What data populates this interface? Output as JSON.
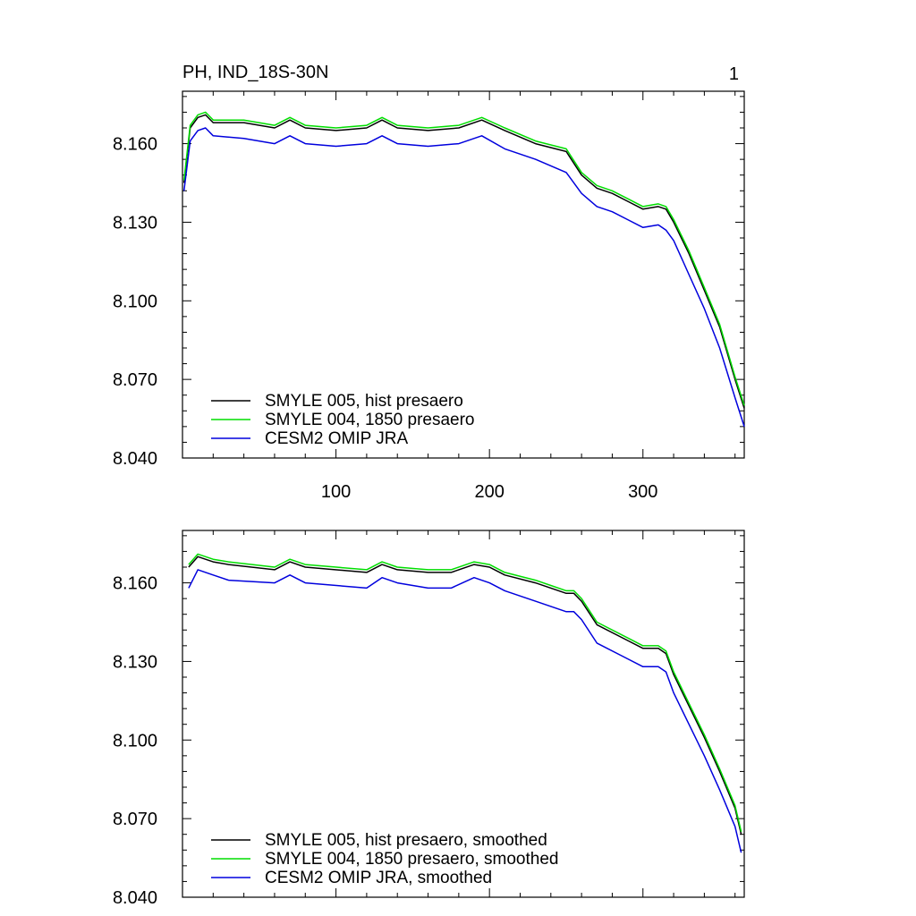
{
  "chart_data": [
    {
      "type": "line",
      "title": "PH, IND_18S-30N",
      "corner_label": "1",
      "xlabel": "",
      "ylabel": "",
      "xlim": [
        0,
        366
      ],
      "ylim": [
        8.04,
        8.18
      ],
      "x_ticks": [
        100,
        200,
        300
      ],
      "x_tick_labels": [
        "100",
        "200",
        "300"
      ],
      "y_ticks": [
        8.04,
        8.07,
        8.1,
        8.13,
        8.16
      ],
      "y_tick_labels": [
        "8.040",
        "8.070",
        "8.100",
        "8.130",
        "8.160"
      ],
      "grid": false,
      "legend_position": "bottom-left",
      "series": [
        {
          "name": "SMYLE 005, hist presaero",
          "color": "#000000",
          "x": [
            1,
            5,
            10,
            15,
            20,
            40,
            60,
            70,
            80,
            100,
            120,
            130,
            140,
            160,
            180,
            195,
            210,
            230,
            250,
            260,
            270,
            280,
            290,
            300,
            310,
            315,
            320,
            330,
            340,
            350,
            360,
            366
          ],
          "y": [
            8.145,
            8.166,
            8.17,
            8.171,
            8.168,
            8.168,
            8.166,
            8.169,
            8.166,
            8.165,
            8.166,
            8.169,
            8.166,
            8.165,
            8.166,
            8.169,
            8.165,
            8.16,
            8.157,
            8.148,
            8.143,
            8.141,
            8.138,
            8.135,
            8.136,
            8.135,
            8.13,
            8.118,
            8.104,
            8.09,
            8.07,
            8.059
          ]
        },
        {
          "name": "SMYLE 004, 1850 presaero",
          "color": "#00dd00",
          "x": [
            1,
            5,
            10,
            15,
            20,
            40,
            60,
            70,
            80,
            100,
            120,
            130,
            140,
            160,
            180,
            195,
            210,
            230,
            250,
            260,
            270,
            280,
            290,
            300,
            310,
            315,
            320,
            330,
            340,
            350,
            360,
            366
          ],
          "y": [
            8.146,
            8.167,
            8.171,
            8.172,
            8.169,
            8.169,
            8.167,
            8.17,
            8.167,
            8.166,
            8.167,
            8.17,
            8.167,
            8.166,
            8.167,
            8.17,
            8.166,
            8.161,
            8.158,
            8.149,
            8.144,
            8.142,
            8.139,
            8.136,
            8.137,
            8.136,
            8.131,
            8.119,
            8.105,
            8.091,
            8.071,
            8.06
          ]
        },
        {
          "name": "CESM2 OMIP JRA",
          "color": "#0000dd",
          "x": [
            1,
            5,
            10,
            15,
            20,
            40,
            60,
            70,
            80,
            100,
            120,
            130,
            140,
            160,
            180,
            195,
            210,
            230,
            250,
            260,
            270,
            280,
            290,
            300,
            310,
            315,
            320,
            330,
            340,
            350,
            360,
            366
          ],
          "y": [
            8.142,
            8.161,
            8.165,
            8.166,
            8.163,
            8.162,
            8.16,
            8.163,
            8.16,
            8.159,
            8.16,
            8.163,
            8.16,
            8.159,
            8.16,
            8.163,
            8.158,
            8.154,
            8.149,
            8.141,
            8.136,
            8.134,
            8.131,
            8.128,
            8.129,
            8.127,
            8.123,
            8.11,
            8.097,
            8.082,
            8.063,
            8.052
          ]
        }
      ]
    },
    {
      "type": "line",
      "title": "",
      "xlabel": "",
      "ylabel": "",
      "xlim": [
        0,
        366
      ],
      "ylim": [
        8.04,
        8.18
      ],
      "x_ticks": [
        100,
        200,
        300
      ],
      "x_tick_labels": [],
      "y_ticks": [
        8.04,
        8.07,
        8.1,
        8.13,
        8.16
      ],
      "y_tick_labels": [
        "8.040",
        "8.070",
        "8.100",
        "8.130",
        "8.160"
      ],
      "grid": false,
      "legend_position": "bottom-left",
      "series": [
        {
          "name": "SMYLE 005, hist presaero, smoothed",
          "color": "#000000",
          "x": [
            4,
            10,
            20,
            30,
            60,
            70,
            80,
            120,
            130,
            140,
            160,
            175,
            190,
            200,
            210,
            230,
            240,
            250,
            255,
            260,
            270,
            290,
            300,
            310,
            315,
            320,
            330,
            340,
            350,
            360,
            364
          ],
          "y": [
            8.166,
            8.17,
            8.168,
            8.167,
            8.165,
            8.168,
            8.166,
            8.164,
            8.167,
            8.165,
            8.164,
            8.164,
            8.167,
            8.166,
            8.163,
            8.16,
            8.158,
            8.156,
            8.156,
            8.153,
            8.144,
            8.138,
            8.135,
            8.135,
            8.133,
            8.125,
            8.113,
            8.101,
            8.088,
            8.074,
            8.064
          ]
        },
        {
          "name": "SMYLE 004, 1850 presaero, smoothed",
          "color": "#00dd00",
          "x": [
            4,
            10,
            20,
            30,
            60,
            70,
            80,
            120,
            130,
            140,
            160,
            175,
            190,
            200,
            210,
            230,
            240,
            250,
            255,
            260,
            270,
            290,
            300,
            310,
            315,
            320,
            330,
            340,
            350,
            360,
            364
          ],
          "y": [
            8.167,
            8.171,
            8.169,
            8.168,
            8.166,
            8.169,
            8.167,
            8.165,
            8.168,
            8.166,
            8.165,
            8.165,
            8.168,
            8.167,
            8.164,
            8.161,
            8.159,
            8.157,
            8.157,
            8.154,
            8.145,
            8.139,
            8.136,
            8.136,
            8.134,
            8.126,
            8.114,
            8.102,
            8.089,
            8.075,
            8.065
          ]
        },
        {
          "name": "CESM2 OMIP JRA, smoothed",
          "color": "#0000dd",
          "x": [
            4,
            10,
            20,
            30,
            60,
            70,
            80,
            120,
            130,
            140,
            160,
            175,
            190,
            200,
            210,
            230,
            240,
            250,
            255,
            260,
            270,
            290,
            300,
            310,
            315,
            320,
            330,
            340,
            350,
            360,
            364
          ],
          "y": [
            8.158,
            8.165,
            8.163,
            8.161,
            8.16,
            8.163,
            8.16,
            8.158,
            8.162,
            8.16,
            8.158,
            8.158,
            8.162,
            8.16,
            8.157,
            8.153,
            8.151,
            8.149,
            8.149,
            8.146,
            8.137,
            8.131,
            8.128,
            8.128,
            8.126,
            8.118,
            8.106,
            8.094,
            8.081,
            8.067,
            8.057
          ]
        }
      ]
    }
  ]
}
